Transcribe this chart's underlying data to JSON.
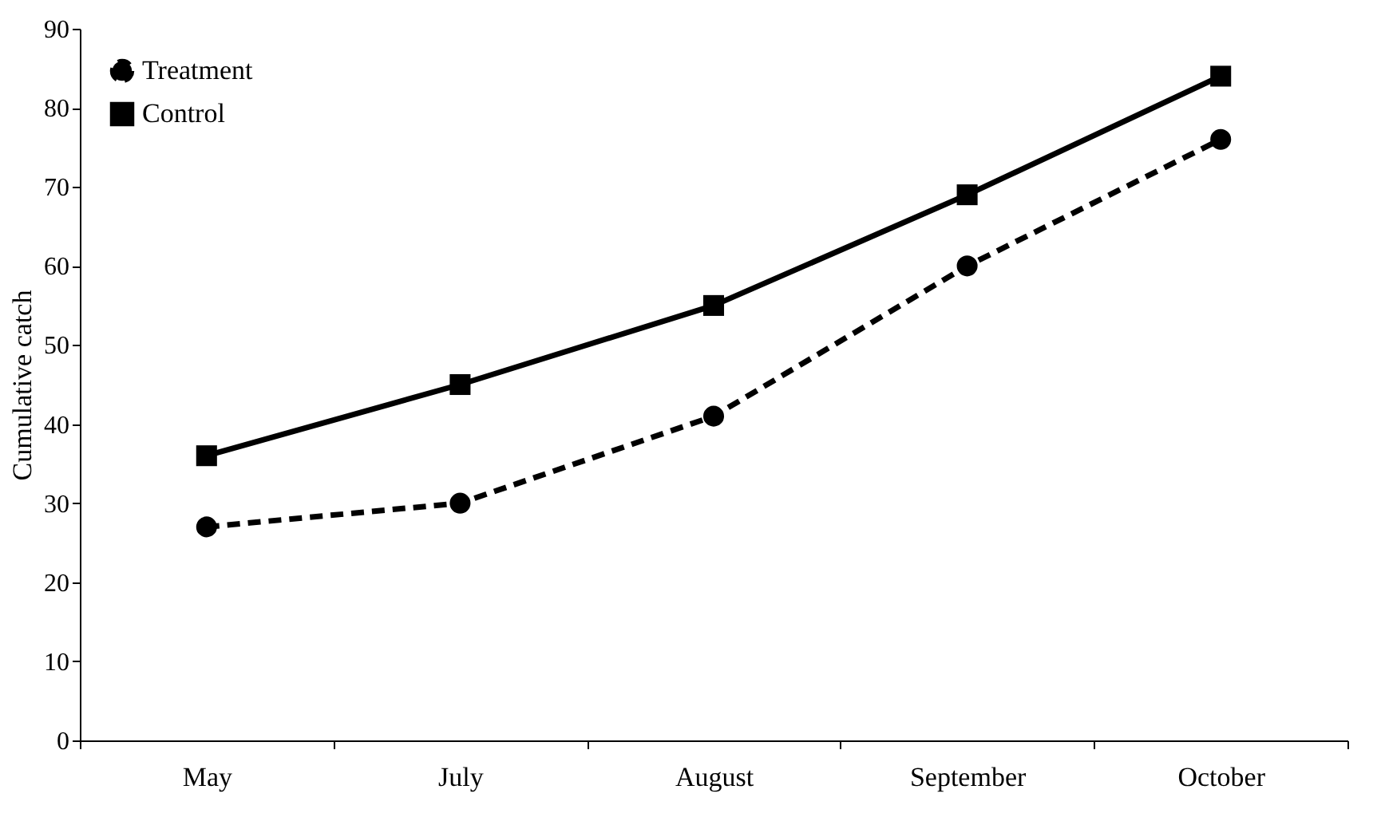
{
  "chart_data": {
    "type": "line",
    "ylabel": "Cumulative catch",
    "categories": [
      "May",
      "July",
      "August",
      "September",
      "October"
    ],
    "series": [
      {
        "name": "Treatment",
        "color": "#000000",
        "marker": "circle",
        "line_style": "dashed",
        "values": [
          27,
          30,
          41,
          60,
          76
        ]
      },
      {
        "name": "Control",
        "color": "#000000",
        "marker": "square",
        "line_style": "solid",
        "values": [
          36,
          45,
          55,
          69,
          84
        ]
      }
    ],
    "ylim": [
      0,
      90
    ],
    "yticks": [
      0,
      10,
      20,
      30,
      40,
      50,
      60,
      70,
      80,
      90
    ],
    "grid": false,
    "legend": "top left"
  }
}
